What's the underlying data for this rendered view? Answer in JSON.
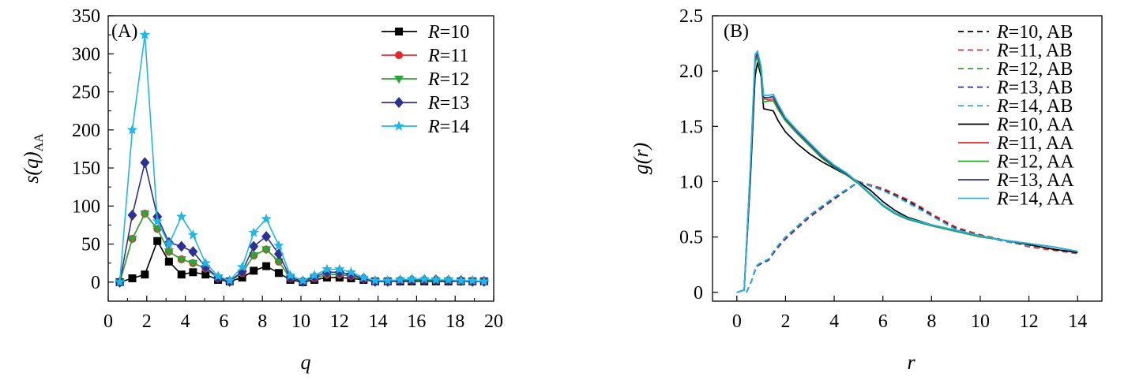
{
  "chart_data": [
    {
      "type": "line",
      "panel_label": "(A)",
      "xlabel": "q",
      "ylabel_main": "s(q)",
      "ylabel_sub": "AA",
      "xlim": [
        0,
        20
      ],
      "ylim": [
        -25,
        350
      ],
      "xticks": [
        0,
        2,
        4,
        6,
        8,
        10,
        12,
        14,
        16,
        18,
        20
      ],
      "yticks": [
        0,
        50,
        100,
        150,
        200,
        250,
        300,
        350
      ],
      "grid": false,
      "legend_position": "top-right",
      "x": [
        0.6,
        1.25,
        1.9,
        2.55,
        3.15,
        3.8,
        4.4,
        5.05,
        5.7,
        6.3,
        6.95,
        7.55,
        8.2,
        8.85,
        9.45,
        10.1,
        10.7,
        11.35,
        12.0,
        12.6,
        13.25,
        13.85,
        14.5,
        15.15,
        15.75,
        16.4,
        17.0,
        17.65,
        18.3,
        18.9,
        19.5
      ],
      "series": [
        {
          "legend_var": "R",
          "legend_val": "=10",
          "color": "#000000",
          "marker": "square",
          "values": [
            0,
            5,
            10,
            54,
            27,
            10,
            13,
            10,
            3,
            1,
            6,
            15,
            21,
            12,
            3,
            0,
            3,
            6,
            6,
            5,
            3,
            1,
            1,
            1,
            1,
            1,
            1,
            1,
            1,
            1,
            1
          ]
        },
        {
          "legend_var": "R",
          "legend_val": "=11",
          "color": "#e8262a",
          "marker": "circle",
          "values": [
            0,
            57,
            90,
            70,
            40,
            30,
            25,
            18,
            5,
            1,
            12,
            35,
            43,
            27,
            5,
            1,
            5,
            10,
            10,
            8,
            4,
            1,
            1,
            2,
            2,
            2,
            2,
            2,
            1,
            1,
            1
          ]
        },
        {
          "legend_var": "R",
          "legend_val": "=12",
          "color": "#2aa635",
          "marker": "triangle-down",
          "values": [
            0,
            57,
            90,
            70,
            40,
            30,
            25,
            18,
            5,
            1,
            12,
            35,
            43,
            27,
            5,
            1,
            5,
            10,
            10,
            8,
            4,
            1,
            1,
            2,
            2,
            2,
            2,
            2,
            1,
            1,
            1
          ]
        },
        {
          "legend_var": "R",
          "legend_val": "=13",
          "color": "#2e3192",
          "marker": "diamond",
          "values": [
            0,
            88,
            157,
            86,
            52,
            47,
            40,
            20,
            6,
            1,
            14,
            47,
            60,
            37,
            6,
            1,
            7,
            13,
            13,
            10,
            5,
            1,
            1,
            2,
            3,
            3,
            3,
            2,
            2,
            1,
            1
          ]
        },
        {
          "legend_var": "R",
          "legend_val": "=14",
          "color": "#1fb6e8",
          "marker": "star",
          "values": [
            0,
            200,
            325,
            80,
            50,
            86,
            62,
            25,
            8,
            2,
            20,
            65,
            83,
            48,
            9,
            2,
            9,
            17,
            17,
            13,
            6,
            2,
            2,
            3,
            4,
            4,
            3,
            3,
            2,
            2,
            1
          ]
        }
      ]
    },
    {
      "type": "line",
      "panel_label": "(B)",
      "xlabel": "r",
      "ylabel": "g(r)",
      "xlim": [
        -1,
        15
      ],
      "ylim": [
        -0.08,
        2.5
      ],
      "xticks": [
        0,
        2,
        4,
        6,
        8,
        10,
        12,
        14
      ],
      "yticks": [
        0,
        0.5,
        1.0,
        1.5,
        2.0,
        2.5
      ],
      "ytick_labels": [
        "0",
        "0.5",
        "1.0",
        "1.5",
        "2.0",
        "2.5"
      ],
      "grid": false,
      "legend_position": "top-right",
      "series": [
        {
          "legend_var": "R",
          "legend_val": "=10, AB",
          "color": "#000000",
          "dash": true,
          "x": [
            0.4,
            0.6,
            0.8,
            1.0,
            1.3,
            1.6,
            2.0,
            2.5,
            3.0,
            3.5,
            4.0,
            4.5,
            5.0,
            5.5,
            6.0,
            6.5,
            7.0,
            7.5,
            8.0,
            8.5,
            9.0,
            10.0,
            11.0,
            12.0,
            13.0,
            14.0
          ],
          "y": [
            0,
            0.1,
            0.24,
            0.27,
            0.3,
            0.4,
            0.5,
            0.6,
            0.7,
            0.78,
            0.86,
            0.93,
            1.0,
            0.97,
            0.93,
            0.88,
            0.83,
            0.77,
            0.7,
            0.64,
            0.58,
            0.52,
            0.47,
            0.42,
            0.39,
            0.36
          ]
        },
        {
          "legend_var": "R",
          "legend_val": "=11, AB",
          "color": "#e8262a",
          "dash": true,
          "x": [
            0.4,
            0.6,
            0.8,
            1.0,
            1.3,
            1.6,
            2.0,
            2.5,
            3.0,
            3.5,
            4.0,
            4.5,
            5.0,
            5.5,
            6.0,
            6.5,
            7.0,
            7.5,
            8.0,
            8.5,
            9.0,
            10.0,
            11.0,
            12.0,
            13.0,
            14.0
          ],
          "y": [
            0,
            0.1,
            0.24,
            0.26,
            0.29,
            0.38,
            0.48,
            0.58,
            0.68,
            0.76,
            0.84,
            0.92,
            1.0,
            0.97,
            0.94,
            0.89,
            0.84,
            0.78,
            0.71,
            0.65,
            0.59,
            0.52,
            0.47,
            0.41,
            0.38,
            0.35
          ]
        },
        {
          "legend_var": "R",
          "legend_val": "=12, AB",
          "color": "#2aa635",
          "dash": true,
          "x": [
            0.4,
            0.6,
            0.8,
            1.0,
            1.3,
            1.6,
            2.0,
            2.5,
            3.0,
            3.5,
            4.0,
            4.5,
            5.0,
            5.5,
            6.0,
            6.5,
            7.0,
            7.5,
            8.0,
            8.5,
            9.0,
            10.0,
            11.0,
            12.0,
            13.0,
            14.0
          ],
          "y": [
            0,
            0.1,
            0.23,
            0.26,
            0.29,
            0.39,
            0.49,
            0.59,
            0.69,
            0.77,
            0.85,
            0.92,
            1.0,
            0.96,
            0.92,
            0.87,
            0.82,
            0.76,
            0.69,
            0.63,
            0.57,
            0.51,
            0.46,
            0.42,
            0.39,
            0.36
          ]
        },
        {
          "legend_var": "R",
          "legend_val": "=13, AB",
          "color": "#2e3192",
          "dash": true,
          "x": [
            0.4,
            0.6,
            0.8,
            1.0,
            1.3,
            1.6,
            2.0,
            2.5,
            3.0,
            3.5,
            4.0,
            4.5,
            5.0,
            5.5,
            6.0,
            6.5,
            7.0,
            7.5,
            8.0,
            8.5,
            9.0,
            10.0,
            11.0,
            12.0,
            13.0,
            14.0
          ],
          "y": [
            0,
            0.1,
            0.23,
            0.26,
            0.29,
            0.39,
            0.49,
            0.59,
            0.69,
            0.77,
            0.85,
            0.92,
            1.0,
            0.96,
            0.92,
            0.87,
            0.82,
            0.76,
            0.69,
            0.63,
            0.57,
            0.51,
            0.46,
            0.42,
            0.39,
            0.36
          ]
        },
        {
          "legend_var": "R",
          "legend_val": "=14, AB",
          "color": "#1fb6e8",
          "dash": true,
          "x": [
            0.4,
            0.6,
            0.8,
            1.0,
            1.3,
            1.6,
            2.0,
            2.5,
            3.0,
            3.5,
            4.0,
            4.5,
            5.0,
            5.5,
            6.0,
            6.5,
            7.0,
            7.5,
            8.0,
            8.5,
            9.0,
            10.0,
            11.0,
            12.0,
            13.0,
            14.0
          ],
          "y": [
            0,
            0.1,
            0.24,
            0.27,
            0.3,
            0.4,
            0.5,
            0.6,
            0.7,
            0.78,
            0.86,
            0.93,
            1.0,
            0.96,
            0.92,
            0.87,
            0.81,
            0.75,
            0.69,
            0.63,
            0.57,
            0.51,
            0.46,
            0.42,
            0.39,
            0.36
          ]
        },
        {
          "legend_var": "R",
          "legend_val": "=10, AA",
          "color": "#000000",
          "dash": false,
          "x": [
            0.0,
            0.3,
            0.55,
            0.75,
            0.85,
            1.0,
            1.1,
            1.3,
            1.5,
            1.7,
            2.0,
            2.5,
            3.0,
            3.5,
            4.0,
            4.5,
            5.0,
            5.5,
            6.0,
            6.5,
            7.0,
            8.0,
            9.0,
            10.0,
            11.0,
            12.0,
            13.0,
            14.0
          ],
          "y": [
            0,
            0.02,
            1.0,
            1.95,
            2.08,
            1.95,
            1.66,
            1.65,
            1.64,
            1.55,
            1.45,
            1.34,
            1.25,
            1.18,
            1.12,
            1.06,
            1.0,
            0.92,
            0.82,
            0.74,
            0.68,
            0.61,
            0.56,
            0.51,
            0.47,
            0.43,
            0.39,
            0.36
          ]
        },
        {
          "legend_var": "R",
          "legend_val": "=11, AA",
          "color": "#e8262a",
          "dash": false,
          "x": [
            0.0,
            0.3,
            0.55,
            0.75,
            0.85,
            1.0,
            1.1,
            1.3,
            1.5,
            1.7,
            2.0,
            2.5,
            3.0,
            3.5,
            4.0,
            4.5,
            5.0,
            5.5,
            6.0,
            6.5,
            7.0,
            8.0,
            9.0,
            10.0,
            11.0,
            12.0,
            13.0,
            14.0
          ],
          "y": [
            0,
            0.02,
            1.1,
            2.1,
            2.14,
            2.0,
            1.75,
            1.74,
            1.75,
            1.67,
            1.56,
            1.44,
            1.33,
            1.22,
            1.14,
            1.07,
            0.99,
            0.89,
            0.79,
            0.72,
            0.67,
            0.61,
            0.56,
            0.51,
            0.47,
            0.44,
            0.41,
            0.37
          ]
        },
        {
          "legend_var": "R",
          "legend_val": "=12, AA",
          "color": "#2aa635",
          "dash": false,
          "x": [
            0.0,
            0.3,
            0.55,
            0.75,
            0.85,
            1.0,
            1.1,
            1.3,
            1.5,
            1.7,
            2.0,
            2.5,
            3.0,
            3.5,
            4.0,
            4.5,
            5.0,
            5.5,
            6.0,
            6.5,
            7.0,
            8.0,
            9.0,
            10.0,
            11.0,
            12.0,
            13.0,
            14.0
          ],
          "y": [
            0,
            0.02,
            1.08,
            2.08,
            2.12,
            1.98,
            1.72,
            1.73,
            1.73,
            1.65,
            1.55,
            1.43,
            1.32,
            1.21,
            1.13,
            1.06,
            0.98,
            0.88,
            0.78,
            0.71,
            0.66,
            0.6,
            0.55,
            0.5,
            0.47,
            0.44,
            0.41,
            0.37
          ]
        },
        {
          "legend_var": "R",
          "legend_val": "=13, AA",
          "color": "#2e3192",
          "dash": false,
          "x": [
            0.0,
            0.3,
            0.55,
            0.75,
            0.85,
            1.0,
            1.1,
            1.3,
            1.5,
            1.7,
            2.0,
            2.5,
            3.0,
            3.5,
            4.0,
            4.5,
            5.0,
            5.5,
            6.0,
            6.5,
            7.0,
            8.0,
            9.0,
            10.0,
            11.0,
            12.0,
            13.0,
            14.0
          ],
          "y": [
            0,
            0.02,
            1.1,
            2.12,
            2.16,
            2.02,
            1.76,
            1.76,
            1.77,
            1.68,
            1.57,
            1.45,
            1.34,
            1.23,
            1.14,
            1.07,
            0.99,
            0.89,
            0.79,
            0.72,
            0.67,
            0.61,
            0.56,
            0.51,
            0.47,
            0.44,
            0.41,
            0.37
          ]
        },
        {
          "legend_var": "R",
          "legend_val": "=14, AA",
          "color": "#1fb6e8",
          "dash": false,
          "x": [
            0.0,
            0.3,
            0.55,
            0.75,
            0.85,
            1.0,
            1.1,
            1.3,
            1.5,
            1.7,
            2.0,
            2.5,
            3.0,
            3.5,
            4.0,
            4.5,
            5.0,
            5.5,
            6.0,
            6.5,
            7.0,
            8.0,
            9.0,
            10.0,
            11.0,
            12.0,
            13.0,
            14.0
          ],
          "y": [
            0,
            0.02,
            1.12,
            2.15,
            2.18,
            2.04,
            1.78,
            1.78,
            1.79,
            1.7,
            1.58,
            1.46,
            1.35,
            1.24,
            1.15,
            1.08,
            0.99,
            0.89,
            0.79,
            0.72,
            0.67,
            0.61,
            0.56,
            0.51,
            0.47,
            0.44,
            0.41,
            0.37
          ]
        }
      ]
    }
  ]
}
